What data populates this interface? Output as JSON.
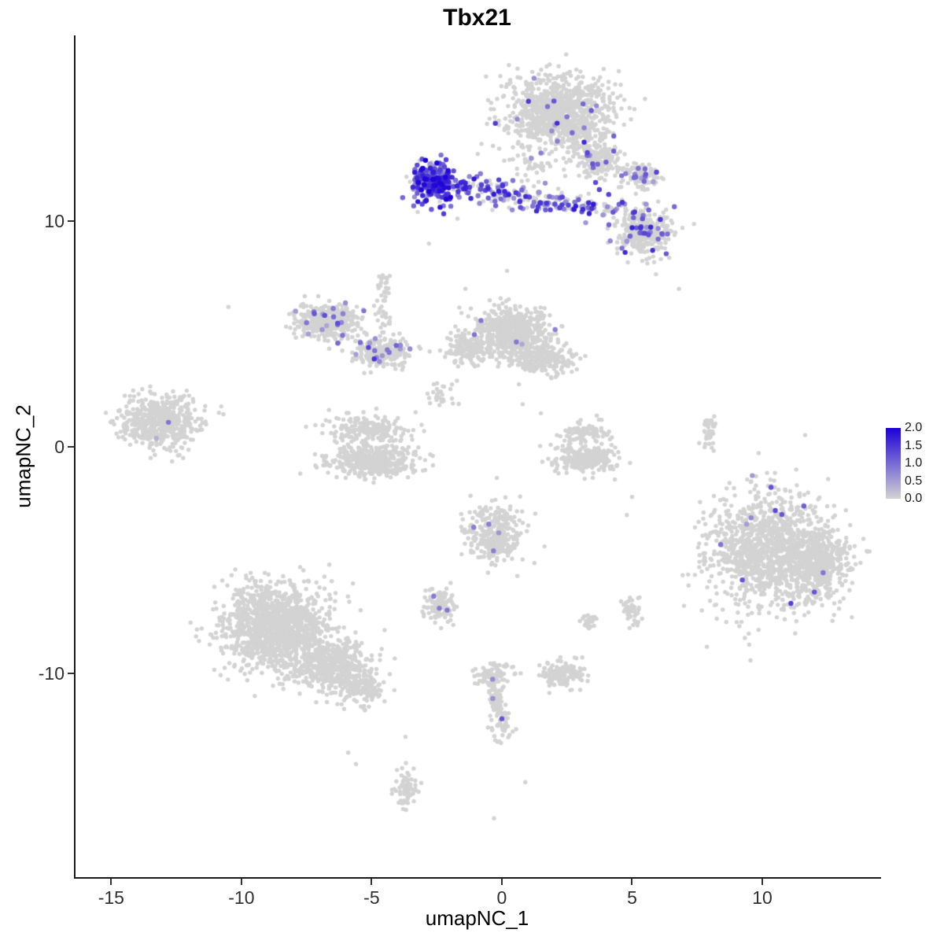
{
  "chart_data": {
    "type": "scatter",
    "title": "Tbx21",
    "xlabel": "umapNC_1",
    "ylabel": "umapNC_2",
    "xlim": [
      -16.4,
      14.5
    ],
    "ylim": [
      -19.0,
      18.2
    ],
    "grid": false,
    "legend_position": "right",
    "x_ticks": [
      {
        "v": -15,
        "label": "-15"
      },
      {
        "v": -10,
        "label": "-10"
      },
      {
        "v": -5,
        "label": "-5"
      },
      {
        "v": 0,
        "label": "0"
      },
      {
        "v": 5,
        "label": "5"
      },
      {
        "v": 10,
        "label": "10"
      }
    ],
    "y_ticks": [
      {
        "v": 10,
        "label": "10"
      },
      {
        "v": 0,
        "label": "0"
      },
      {
        "v": -10,
        "label": "-10"
      }
    ],
    "legend": {
      "min": 0,
      "max": 2,
      "tick_labels": [
        "2.0",
        "1.5",
        "1.0",
        "0.5",
        "0.0"
      ],
      "color_low": "#d3d3d3",
      "color_high": "#1c00d6"
    },
    "point_color_zero": "#d3d3d3",
    "clusters": [
      {
        "name": "top-blob",
        "type": "blob",
        "cx": 2.2,
        "cy": 14.7,
        "rx": 1.9,
        "ry": 1.5,
        "n": 1000,
        "expr_frac": 0.012,
        "expr_max": 1.6
      },
      {
        "name": "top-blob-tail",
        "type": "blob",
        "cx": 3.8,
        "cy": 12.7,
        "rx": 0.8,
        "ry": 0.7,
        "n": 160,
        "expr_frac": 0.05,
        "expr_max": 1.4
      },
      {
        "name": "top-right-clump",
        "type": "blob",
        "cx": 5.3,
        "cy": 12.0,
        "rx": 0.6,
        "ry": 0.5,
        "n": 110,
        "expr_frac": 0.08,
        "expr_max": 1.4
      },
      {
        "name": "sparse-below-top",
        "type": "blob",
        "cx": 1.2,
        "cy": 12.5,
        "rx": 0.6,
        "ry": 0.5,
        "n": 28,
        "expr_frac": 0.05,
        "expr_max": 1.0
      },
      {
        "name": "right-mid-cluster",
        "type": "blob",
        "cx": 5.5,
        "cy": 9.6,
        "rx": 1.0,
        "ry": 1.0,
        "n": 330,
        "expr_frac": 0.1,
        "expr_max": 1.7
      },
      {
        "name": "nk-band-core",
        "type": "blob",
        "cx": -2.65,
        "cy": 11.7,
        "rx": 0.75,
        "ry": 0.8,
        "n": 270,
        "expr_frac": 0.8,
        "expr_max": 2.0
      },
      {
        "name": "nk-band-trail",
        "type": "band",
        "x0": -1.9,
        "y0": 11.6,
        "x1": 4.4,
        "y1": 10.4,
        "jitter": 0.28,
        "n": 240,
        "expr_frac": 0.5,
        "expr_max": 1.8
      },
      {
        "name": "left-arc-main",
        "type": "blob",
        "cx": -6.7,
        "cy": 5.6,
        "rx": 1.1,
        "ry": 0.75,
        "n": 380,
        "expr_frac": 0.03,
        "expr_max": 1.4
      },
      {
        "name": "left-arc-arm",
        "type": "blob",
        "cx": -4.6,
        "cy": 4.2,
        "rx": 1.0,
        "ry": 0.6,
        "n": 230,
        "expr_frac": 0.04,
        "expr_max": 1.4
      },
      {
        "name": "left-arc-trail",
        "type": "band",
        "x0": -4.5,
        "y0": 7.8,
        "x1": -4.6,
        "y1": 5.2,
        "jitter": 0.15,
        "n": 45,
        "expr_frac": 0.02,
        "expr_max": 1.0
      },
      {
        "name": "center-mid-main",
        "type": "blob",
        "cx": 0.4,
        "cy": 5.2,
        "rx": 1.3,
        "ry": 0.9,
        "n": 560,
        "expr_frac": 0.003,
        "expr_max": 1.0
      },
      {
        "name": "center-mid-south",
        "type": "blob",
        "cx": 1.5,
        "cy": 3.9,
        "rx": 1.2,
        "ry": 0.6,
        "n": 250,
        "expr_frac": 0.003,
        "expr_max": 1.0
      },
      {
        "name": "center-mid-west",
        "type": "blob",
        "cx": -1.3,
        "cy": 4.4,
        "rx": 0.8,
        "ry": 0.6,
        "n": 160,
        "expr_frac": 0.004,
        "expr_max": 1.0
      },
      {
        "name": "center-trail",
        "type": "blob",
        "cx": -2.3,
        "cy": 2.4,
        "rx": 0.5,
        "ry": 0.5,
        "n": 30,
        "expr_frac": 0,
        "expr_max": 0
      },
      {
        "name": "far-left-cluster",
        "type": "blob",
        "cx": -13.1,
        "cy": 1.1,
        "rx": 1.4,
        "ry": 1.1,
        "n": 520,
        "expr_frac": 0.002,
        "expr_max": 1.1
      },
      {
        "name": "horseshoe-bottom",
        "type": "blob",
        "cx": -5.0,
        "cy": -0.6,
        "rx": 1.5,
        "ry": 0.65,
        "n": 430,
        "expr_frac": 0,
        "expr_max": 0
      },
      {
        "name": "horseshoe-top",
        "type": "blob",
        "cx": -5.2,
        "cy": 0.8,
        "rx": 1.4,
        "ry": 0.55,
        "n": 190,
        "expr_frac": 0,
        "expr_max": 0
      },
      {
        "name": "small-horseshoe-bottom",
        "type": "blob",
        "cx": 3.2,
        "cy": -0.5,
        "rx": 1.1,
        "ry": 0.55,
        "n": 260,
        "expr_frac": 0,
        "expr_max": 0
      },
      {
        "name": "small-horseshoe-top",
        "type": "blob",
        "cx": 3.2,
        "cy": 0.7,
        "rx": 0.9,
        "ry": 0.4,
        "n": 90,
        "expr_frac": 0,
        "expr_max": 0
      },
      {
        "name": "sliver",
        "type": "band",
        "x0": 8.0,
        "y0": 1.4,
        "x1": 7.9,
        "y1": -0.1,
        "jitter": 0.12,
        "n": 45,
        "expr_frac": 0,
        "expr_max": 0
      },
      {
        "name": "right-big-main",
        "type": "blob",
        "cx": 10.3,
        "cy": -4.6,
        "rx": 2.2,
        "ry": 2.3,
        "n": 1250,
        "expr_frac": 0.004,
        "expr_max": 1.5
      },
      {
        "name": "right-big-east",
        "type": "blob",
        "cx": 12.2,
        "cy": -5.2,
        "rx": 1.0,
        "ry": 1.3,
        "n": 380,
        "expr_frac": 0.004,
        "expr_max": 1.5
      },
      {
        "name": "center-small-cluster",
        "type": "blob",
        "cx": -0.3,
        "cy": -3.8,
        "rx": 1.0,
        "ry": 1.1,
        "n": 330,
        "expr_frac": 0.003,
        "expr_max": 1.0
      },
      {
        "name": "tiny-left-cluster",
        "type": "blob",
        "cx": -2.4,
        "cy": -7.0,
        "rx": 0.55,
        "ry": 0.6,
        "n": 110,
        "expr_frac": 0.01,
        "expr_max": 1.0
      },
      {
        "name": "bottom-left-main",
        "type": "blob",
        "cx": -8.7,
        "cy": -7.9,
        "rx": 1.8,
        "ry": 1.6,
        "n": 1300,
        "expr_frac": 0,
        "expr_max": 0
      },
      {
        "name": "bottom-left-south",
        "type": "blob",
        "cx": -6.6,
        "cy": -9.6,
        "rx": 1.4,
        "ry": 1.1,
        "n": 550,
        "expr_frac": 0,
        "expr_max": 0
      },
      {
        "name": "bottom-left-arm",
        "type": "blob",
        "cx": -5.3,
        "cy": -10.7,
        "rx": 0.7,
        "ry": 0.6,
        "n": 130,
        "expr_frac": 0,
        "expr_max": 0
      },
      {
        "name": "small-bottom-center",
        "type": "blob",
        "cx": 2.4,
        "cy": -10.0,
        "rx": 0.75,
        "ry": 0.6,
        "n": 130,
        "expr_frac": 0,
        "expr_max": 0
      },
      {
        "name": "streak-top",
        "type": "blob",
        "cx": -0.3,
        "cy": -10.0,
        "rx": 0.7,
        "ry": 0.4,
        "n": 70,
        "expr_frac": 0,
        "expr_max": 0
      },
      {
        "name": "streak",
        "type": "band",
        "x0": -0.4,
        "y0": -10.2,
        "x1": 0.1,
        "y1": -12.7,
        "jitter": 0.2,
        "n": 110,
        "expr_frac": 0.015,
        "expr_max": 1.2
      },
      {
        "name": "tiny-bottom",
        "type": "blob",
        "cx": -3.7,
        "cy": -15.1,
        "rx": 0.4,
        "ry": 0.8,
        "n": 70,
        "expr_frac": 0,
        "expr_max": 0
      },
      {
        "name": "clump-se-1",
        "type": "blob",
        "cx": 5.0,
        "cy": -7.3,
        "rx": 0.3,
        "ry": 0.5,
        "n": 45,
        "expr_frac": 0,
        "expr_max": 0
      },
      {
        "name": "clump-se-2",
        "type": "blob",
        "cx": 3.3,
        "cy": -7.7,
        "rx": 0.35,
        "ry": 0.3,
        "n": 30,
        "expr_frac": 0,
        "expr_max": 0
      }
    ],
    "outliers": [
      [
        -10.5,
        6.2
      ],
      [
        6.8,
        7.0
      ],
      [
        -2.8,
        9.0
      ],
      [
        -12.1,
        2.5
      ],
      [
        -3.7,
        -12.8
      ],
      [
        -5.9,
        -13.5
      ],
      [
        -5.6,
        -14.0
      ],
      [
        0.9,
        -14.8
      ],
      [
        4.8,
        -3.0
      ],
      [
        5.0,
        -2.2
      ],
      [
        0.8,
        1.9
      ],
      [
        1.5,
        1.5
      ],
      [
        -0.3,
        -16.4
      ],
      [
        -1.4,
        7.0
      ],
      [
        0.2,
        7.8
      ]
    ],
    "marked_points": [
      [
        2.0,
        15.3,
        1.2
      ],
      [
        2.5,
        14.6,
        0.9
      ],
      [
        2.7,
        13.9,
        1.0
      ],
      [
        1.5,
        13.0,
        0.8
      ],
      [
        4.0,
        12.6,
        1.1
      ],
      [
        4.6,
        12.0,
        0.9
      ],
      [
        5.5,
        12.3,
        1.0
      ],
      [
        3.6,
        11.7,
        1.3
      ],
      [
        5.1,
        10.4,
        1.5
      ],
      [
        5.4,
        10.1,
        1.2
      ],
      [
        5.0,
        9.7,
        1.7
      ],
      [
        5.7,
        9.5,
        0.8
      ],
      [
        6.0,
        9.2,
        1.0
      ],
      [
        4.8,
        9.1,
        0.6
      ],
      [
        -7.5,
        5.5,
        0.9
      ],
      [
        -7.2,
        5.9,
        1.2
      ],
      [
        -6.9,
        5.2,
        0.6
      ],
      [
        -6.1,
        5.9,
        0.8
      ],
      [
        -6.3,
        4.6,
        1.0
      ],
      [
        -4.9,
        3.9,
        1.5
      ],
      [
        -4.4,
        4.3,
        0.9
      ],
      [
        -3.9,
        4.5,
        0.7
      ],
      [
        -5.6,
        4.1,
        0.5
      ],
      [
        -0.8,
        5.6,
        0.9
      ],
      [
        -12.8,
        1.1,
        0.9
      ],
      [
        10.5,
        -2.8,
        1.3
      ],
      [
        11.6,
        -2.6,
        1.1
      ],
      [
        8.4,
        -4.3,
        0.9
      ],
      [
        12.0,
        -6.4,
        1.2
      ],
      [
        11.1,
        -6.9,
        1.4
      ],
      [
        9.4,
        -3.4,
        0.5
      ],
      [
        -0.5,
        -3.4,
        0.8
      ],
      [
        -2.1,
        -7.2,
        0.9
      ],
      [
        0.0,
        -12.0,
        1.2
      ],
      [
        -2.8,
        11.3,
        2.0
      ],
      [
        -2.5,
        11.9,
        1.9
      ]
    ]
  }
}
